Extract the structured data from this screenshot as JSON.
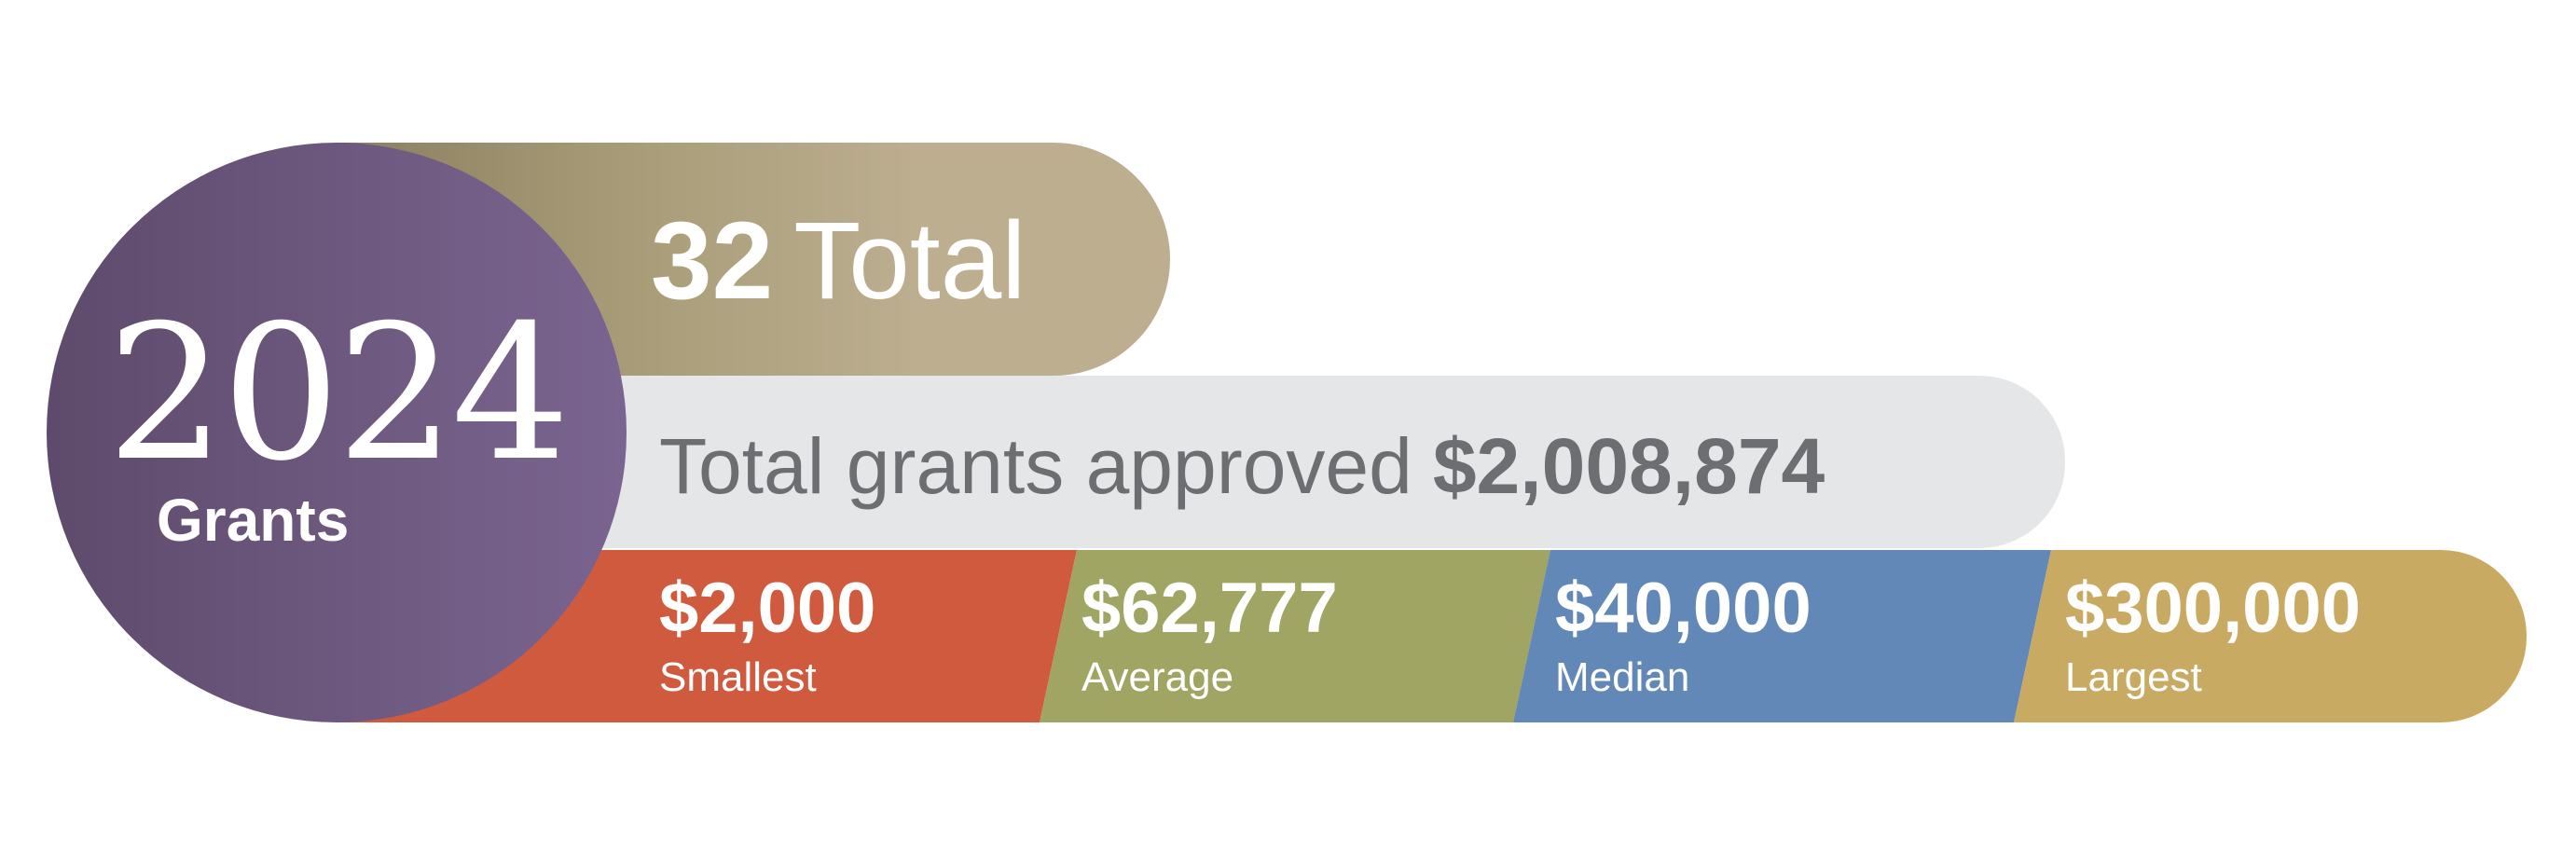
{
  "year": {
    "value": "2024",
    "caption": "Grants"
  },
  "total_count": {
    "number": "32",
    "label": "Total"
  },
  "approved": {
    "label": "Total grants approved",
    "amount": "$2,008,874"
  },
  "stats": [
    {
      "value": "$2,000",
      "caption": "Smallest",
      "color": "#d05a3e"
    },
    {
      "value": "$62,777",
      "caption": "Average",
      "color": "#a0a564"
    },
    {
      "value": "$40,000",
      "caption": "Median",
      "color": "#6288b7"
    },
    {
      "value": "$300,000",
      "caption": "Largest",
      "color": "#c9aa62"
    }
  ],
  "colors": {
    "circle": "#6e5a80",
    "total_bar": "#bcae8f",
    "approved_bar": "#e5e6e8",
    "approved_text": "#6d6e71"
  }
}
